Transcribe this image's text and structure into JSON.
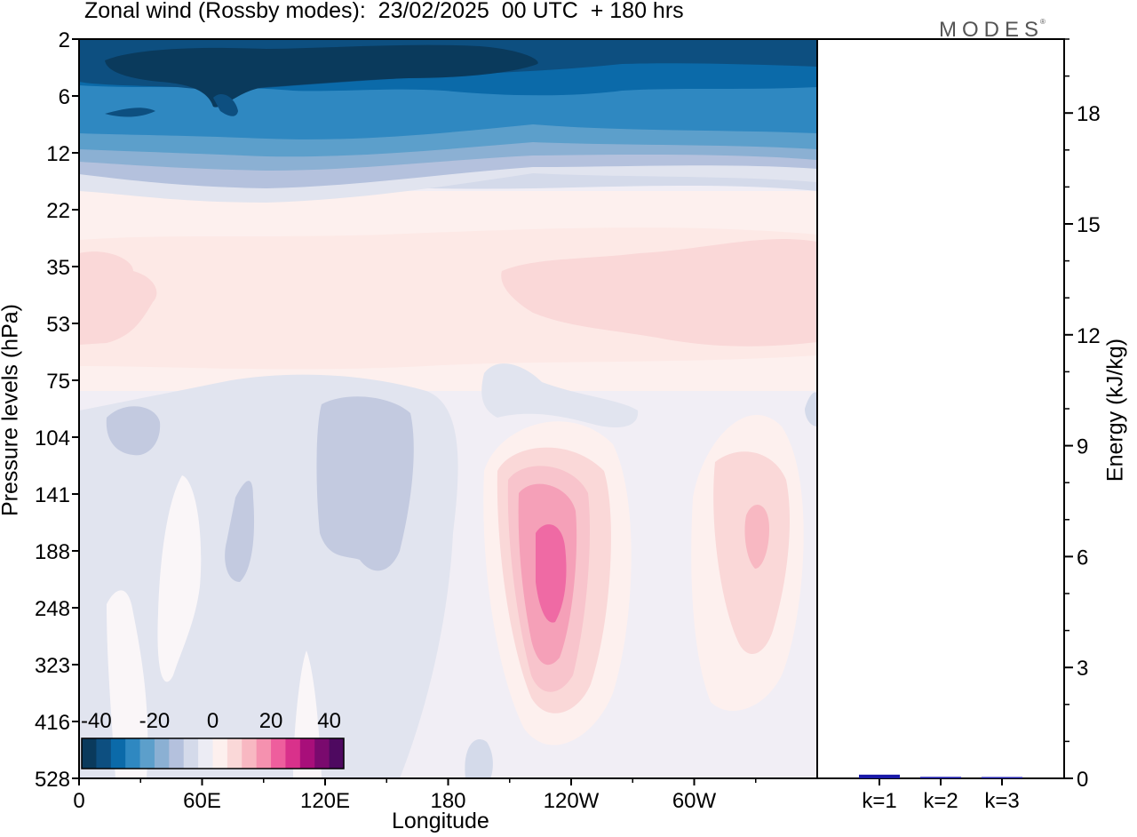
{
  "title": "Zonal wind (Rossby modes):  23/02/2025  00 UTC  + 180 hrs",
  "logo": {
    "text": "MODES",
    "mark": "®"
  },
  "colors": {
    "scale": [
      "#0a3a5c",
      "#0d4f80",
      "#0b6aa9",
      "#2f88c1",
      "#5c9fcb",
      "#8bb0d3",
      "#b4c1dd",
      "#d4daea",
      "#ececf4",
      "#fdf0ee",
      "#fad8d8",
      "#f8b8c2",
      "#f591af",
      "#ee5e9d",
      "#d9318b",
      "#a80f7a",
      "#7a0a6e",
      "#4e0960"
    ],
    "frame": "#000000",
    "bar": "#1a1aa8"
  },
  "chart_data": [
    {
      "type": "heatmap",
      "title": "Zonal wind (Rossby modes):  23/02/2025  00 UTC  + 180 hrs",
      "xlabel": "Longitude",
      "ylabel": "Pressure levels (hPa)",
      "x_ticks": [
        "0",
        "60E",
        "120E",
        "180",
        "120W",
        "60W"
      ],
      "y_ticks": [
        "2",
        "6",
        "12",
        "22",
        "35",
        "53",
        "75",
        "104",
        "141",
        "188",
        "248",
        "323",
        "416",
        "528"
      ],
      "colorbar": {
        "ticks": [
          "-40",
          "-20",
          "0",
          "20",
          "40"
        ],
        "range": [
          -45,
          45
        ],
        "step": 5
      },
      "features": [
        {
          "region": "upper levels 2-12 hPa, all longitudes",
          "value_range": [
            -45,
            -25
          ]
        },
        {
          "region": "levels 12-22 hPa",
          "value_range": [
            -20,
            -5
          ]
        },
        {
          "region": "levels 25-60 hPa",
          "value_range": [
            0,
            10
          ]
        },
        {
          "region": "peak near 110W, 188 hPa",
          "value": 25
        },
        {
          "region": "peak near 30W, 188 hPa",
          "value": 12
        },
        {
          "region": "weak easterlies 0-180, 100-500 hPa",
          "value_range": [
            -10,
            0
          ]
        }
      ]
    },
    {
      "type": "bar",
      "categories": [
        "k=1",
        "k=2",
        "k=3"
      ],
      "values": [
        0.1,
        0.04,
        0.03
      ],
      "ylabel": "Energy (kJ/kg)",
      "y_ticks": [
        "0",
        "3",
        "6",
        "9",
        "12",
        "15",
        "18"
      ],
      "ylim": [
        0,
        20
      ]
    }
  ]
}
